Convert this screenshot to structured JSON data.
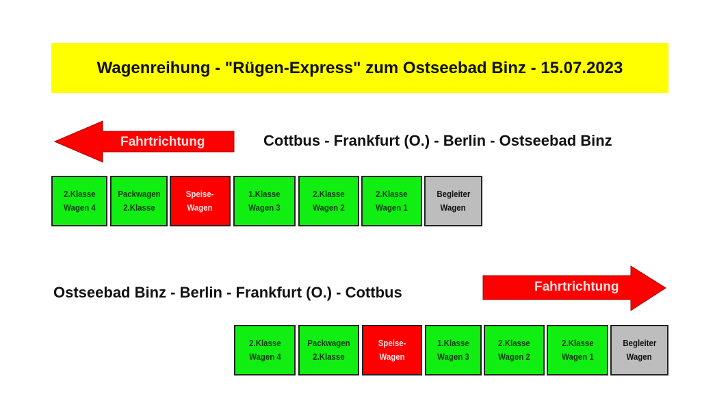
{
  "title": "Wagenreihung - \"Rügen-Express\" zum Ostseebad Binz - 15.07.2023",
  "colors": {
    "title_bg": "#ffff00",
    "arrow": "#ff0000",
    "passenger_car": "#11ee11",
    "dining_car": "#ff0000",
    "escort_car": "#bdbdbd"
  },
  "outbound": {
    "route": "Cottbus - Frankfurt (O.) - Berlin - Ostseebad Binz",
    "direction_label": "Fahrtrichtung",
    "direction": "left",
    "cars": [
      {
        "line1": "2.Klasse",
        "line2": "Wagen 4",
        "type": "green"
      },
      {
        "line1": "Packwagen",
        "line2": "2.Klasse",
        "type": "green"
      },
      {
        "line1": "Speise-",
        "line2": "Wagen",
        "type": "red"
      },
      {
        "line1": "1.Klasse",
        "line2": "Wagen 3",
        "type": "green"
      },
      {
        "line1": "2.Klasse",
        "line2": "Wagen 2",
        "type": "green"
      },
      {
        "line1": "2.Klasse",
        "line2": "Wagen 1",
        "type": "green"
      },
      {
        "line1": "Begleiter",
        "line2": "Wagen",
        "type": "grey"
      }
    ]
  },
  "return": {
    "route": "Ostseebad Binz - Berlin - Frankfurt (O.) - Cottbus",
    "direction_label": "Fahrtrichtung",
    "direction": "right",
    "cars": [
      {
        "line1": "2.Klasse",
        "line2": "Wagen 4",
        "type": "green"
      },
      {
        "line1": "Packwagen",
        "line2": "2.Klasse",
        "type": "green"
      },
      {
        "line1": "Speise-",
        "line2": "Wagen",
        "type": "red"
      },
      {
        "line1": "1.Klasse",
        "line2": "Wagen 3",
        "type": "green"
      },
      {
        "line1": "2.Klasse",
        "line2": "Wagen 2",
        "type": "green"
      },
      {
        "line1": "2.Klasse",
        "line2": "Wagen 1",
        "type": "green"
      },
      {
        "line1": "Begleiter",
        "line2": "Wagen",
        "type": "grey"
      }
    ]
  }
}
